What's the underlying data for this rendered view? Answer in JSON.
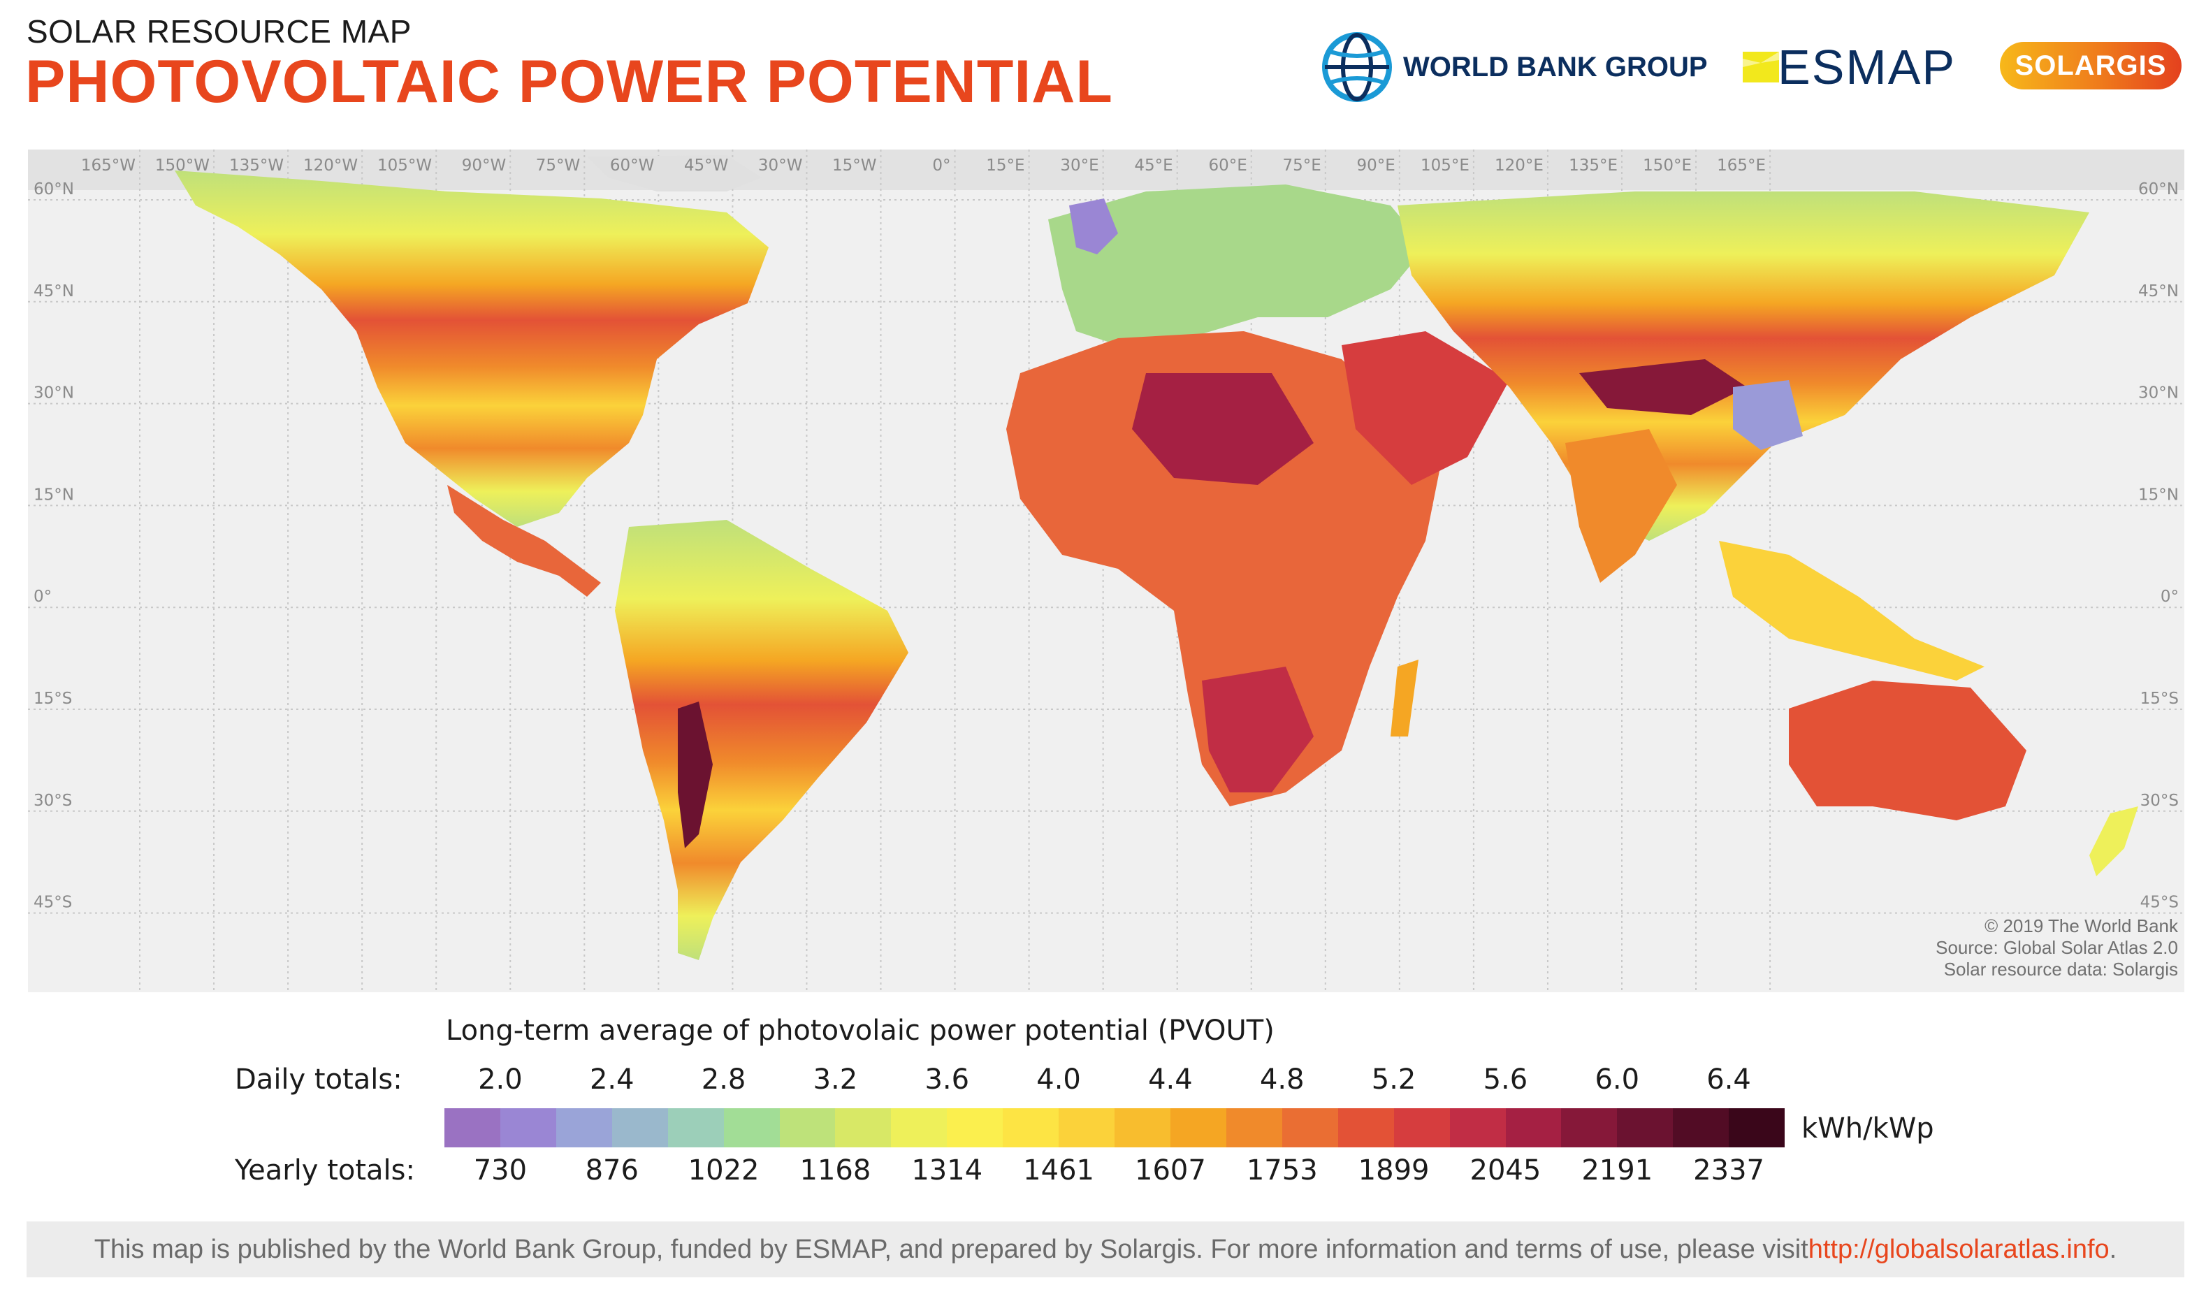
{
  "header": {
    "subtitle": "SOLAR RESOURCE MAP",
    "title": "PHOTOVOLTAIC POWER POTENTIAL"
  },
  "logos": {
    "world_bank": "WORLD BANK GROUP",
    "esmap": "ESMAP",
    "solargis": "SOLARGIS"
  },
  "map": {
    "longitude_labels": [
      "165°W",
      "150°W",
      "135°W",
      "120°W",
      "105°W",
      "90°W",
      "75°W",
      "60°W",
      "45°W",
      "30°W",
      "15°W",
      "0°",
      "15°E",
      "30°E",
      "45°E",
      "60°E",
      "75°E",
      "90°E",
      "105°E",
      "120°E",
      "135°E",
      "150°E",
      "165°E"
    ],
    "latitude_labels": [
      "60°N",
      "45°N",
      "30°N",
      "15°N",
      "0°",
      "15°S",
      "30°S",
      "45°S"
    ],
    "credits": [
      "© 2019 The World Bank",
      "Source: Global Solar Atlas 2.0",
      "Solar resource data: Solargis"
    ]
  },
  "legend": {
    "title": "Long-term average of photovolaic power potential (PVOUT)",
    "daily_label": "Daily totals:",
    "yearly_label": "Yearly totals:",
    "daily_ticks": [
      "2.0",
      "2.4",
      "2.8",
      "3.2",
      "3.6",
      "4.0",
      "4.4",
      "4.8",
      "5.2",
      "5.6",
      "6.0",
      "6.4"
    ],
    "yearly_ticks": [
      "730",
      "876",
      "1022",
      "1168",
      "1314",
      "1461",
      "1607",
      "1753",
      "1899",
      "2045",
      "2191",
      "2337"
    ],
    "unit": "kWh/kWp",
    "colors": [
      "#9a72c2",
      "#9a86d4",
      "#9aa4d8",
      "#9ab8cc",
      "#9ccfb9",
      "#a2dd96",
      "#bee27a",
      "#d8e866",
      "#eef05a",
      "#fbef4e",
      "#fde444",
      "#fbd23a",
      "#f8bd2e",
      "#f5a623",
      "#f08a2b",
      "#ea6e33",
      "#e35236",
      "#d63d3e",
      "#c12d45",
      "#a52043",
      "#861839",
      "#6b1230",
      "#520c25",
      "#3a061a"
    ]
  },
  "footer": {
    "text": "This map is published by the World Bank Group, funded by ESMAP, and prepared by Solargis. For more information and terms of use, please visit ",
    "link": "http://globalsolaratlas.info",
    "end": "."
  }
}
